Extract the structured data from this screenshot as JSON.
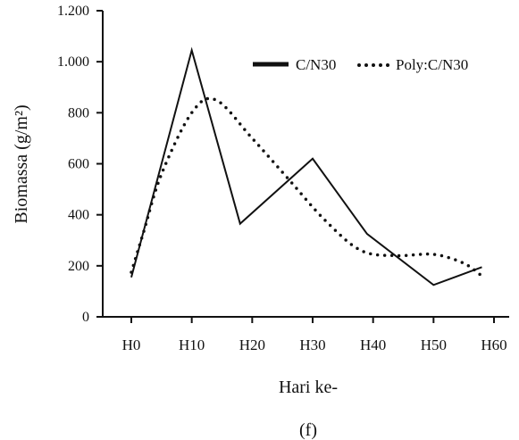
{
  "chart_data": {
    "type": "line",
    "categories": [
      "H0",
      "H10",
      "H20",
      "H30",
      "H40",
      "H50",
      "H60"
    ],
    "xlabel": "Hari ke-",
    "ylabel": "Biomassa (g/m²)",
    "caption": "(f)",
    "ylim": [
      0,
      1200
    ],
    "yticks": [
      0,
      200,
      400,
      600,
      800,
      1000,
      1200
    ],
    "ytick_labels": [
      "0",
      "200",
      "400",
      "600",
      "800",
      "1.000",
      "1.200"
    ],
    "legend_position": "top-right",
    "series": [
      {
        "name": "C/N30",
        "style": "solid",
        "color": "#111111",
        "x": [
          0,
          10,
          18,
          30,
          39,
          50,
          58
        ],
        "values": [
          155,
          1045,
          365,
          620,
          325,
          125,
          195
        ]
      },
      {
        "name": "Poly:C/N30",
        "style": "dotted",
        "color": "#111111",
        "x": [
          0,
          2,
          5,
          10,
          14,
          20,
          26,
          32,
          38,
          44,
          50,
          55,
          58
        ],
        "values": [
          175,
          330,
          560,
          800,
          850,
          700,
          540,
          380,
          260,
          240,
          245,
          210,
          160
        ]
      }
    ]
  }
}
